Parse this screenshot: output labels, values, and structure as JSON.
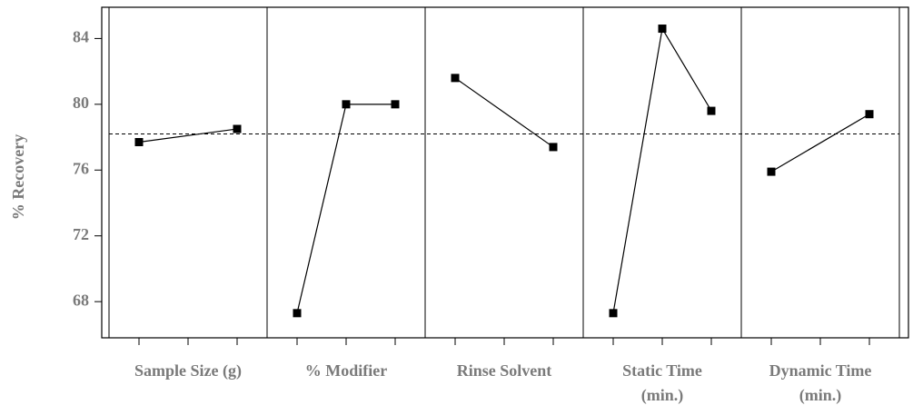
{
  "chart_data": {
    "type": "line",
    "y_label": "% Recovery",
    "ylim": [
      65.8,
      85.9
    ],
    "yticks": [
      68,
      72,
      76,
      80,
      84
    ],
    "reference_line": 78.2,
    "color": "#000000",
    "panels": [
      {
        "label": [
          "Sample Size (g)"
        ],
        "categories": [
          null,
          null
        ],
        "values": [
          77.7,
          78.5
        ]
      },
      {
        "label": [
          "% Modifier"
        ],
        "categories": [
          null,
          null,
          null
        ],
        "values": [
          67.3,
          80.0,
          80.0
        ]
      },
      {
        "label": [
          "Rinse Solvent"
        ],
        "categories": [
          null,
          null
        ],
        "values": [
          81.6,
          77.4
        ]
      },
      {
        "label": [
          "Static Time",
          "(min.)"
        ],
        "categories": [
          null,
          null,
          null
        ],
        "values": [
          67.3,
          84.6,
          79.6
        ]
      },
      {
        "label": [
          "Dynamic Time",
          "(min.)"
        ],
        "categories": [
          null,
          null
        ],
        "values": [
          75.9,
          79.4
        ]
      }
    ]
  }
}
